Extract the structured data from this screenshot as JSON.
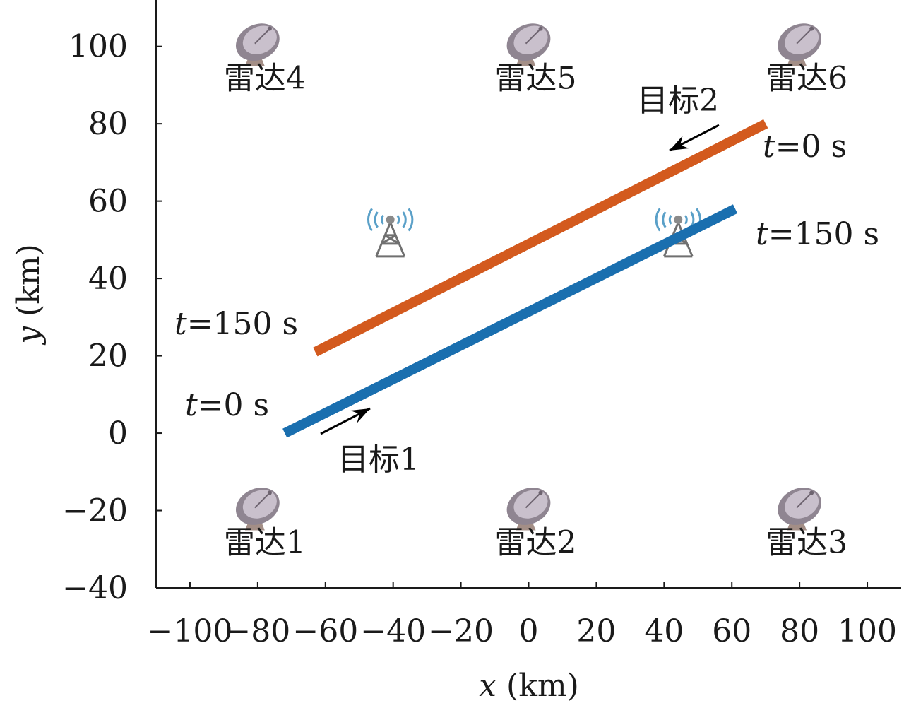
{
  "chart_data": {
    "type": "line",
    "xlabel": "x (km)",
    "ylabel": "y (km)",
    "xlim": [
      -110,
      110
    ],
    "ylim": [
      -40,
      112
    ],
    "xticks": [
      -100,
      -80,
      -60,
      -40,
      -20,
      0,
      20,
      40,
      60,
      80,
      100
    ],
    "yticks": [
      -40,
      -20,
      0,
      20,
      40,
      60,
      80,
      100
    ],
    "xtick_labels": [
      "−100",
      "−80",
      "−60",
      "−40",
      "−20",
      "0",
      "20",
      "40",
      "60",
      "80",
      "100"
    ],
    "ytick_labels": [
      "−40",
      "−20",
      "0",
      "20",
      "40",
      "60",
      "80",
      "100"
    ],
    "series": [
      {
        "name": "目标1",
        "color": "#1a6faf",
        "x": [
          -72,
          61
        ],
        "y": [
          0,
          58
        ],
        "start_label": "t=0 s",
        "end_label": "t=150 s"
      },
      {
        "name": "目标2",
        "color": "#d35a1e",
        "x": [
          70,
          -63
        ],
        "y": [
          80,
          21
        ],
        "start_label": "t=0 s",
        "end_label": "t=150 s"
      }
    ],
    "radars": [
      {
        "label": "雷达1",
        "x": -80,
        "y": -20,
        "icon": "radar-dish-icon"
      },
      {
        "label": "雷达2",
        "x": 0,
        "y": -20,
        "icon": "radar-dish-icon"
      },
      {
        "label": "雷达3",
        "x": 80,
        "y": -20,
        "icon": "radar-dish-icon"
      },
      {
        "label": "雷达4",
        "x": -80,
        "y": 100,
        "icon": "radar-dish-icon"
      },
      {
        "label": "雷达5",
        "x": 0,
        "y": 100,
        "icon": "radar-dish-icon"
      },
      {
        "label": "雷达6",
        "x": 80,
        "y": 100,
        "icon": "radar-dish-icon"
      }
    ],
    "towers": [
      {
        "x": -40,
        "y": 51,
        "icon": "signal-tower-icon"
      },
      {
        "x": 45,
        "y": 51,
        "icon": "signal-tower-icon"
      }
    ],
    "target_labels": [
      {
        "text": "目标1",
        "direction": "up-right"
      },
      {
        "text": "目标2",
        "direction": "down-left"
      }
    ]
  }
}
